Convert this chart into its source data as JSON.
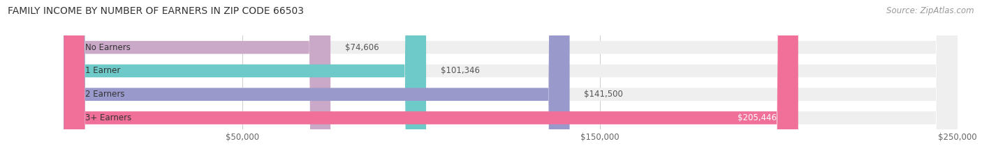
{
  "title": "FAMILY INCOME BY NUMBER OF EARNERS IN ZIP CODE 66503",
  "source": "Source: ZipAtlas.com",
  "categories": [
    "No Earners",
    "1 Earner",
    "2 Earners",
    "3+ Earners"
  ],
  "values": [
    74606,
    101346,
    141500,
    205446
  ],
  "bar_colors": [
    "#c9a8c8",
    "#6ecac8",
    "#9999cc",
    "#f07099"
  ],
  "bar_bg_color": "#efefef",
  "label_colors": [
    "#555555",
    "#555555",
    "#555555",
    "#ffffff"
  ],
  "xlim": [
    0,
    250000
  ],
  "xticks": [
    50000,
    150000,
    250000
  ],
  "xtick_labels": [
    "$50,000",
    "$150,000",
    "$250,000"
  ],
  "value_labels": [
    "$74,606",
    "$101,346",
    "$141,500",
    "$205,446"
  ],
  "title_fontsize": 10,
  "source_fontsize": 8.5,
  "label_fontsize": 8.5,
  "value_fontsize": 8.5,
  "tick_fontsize": 8.5,
  "bg_color": "#ffffff",
  "bar_height": 0.55
}
